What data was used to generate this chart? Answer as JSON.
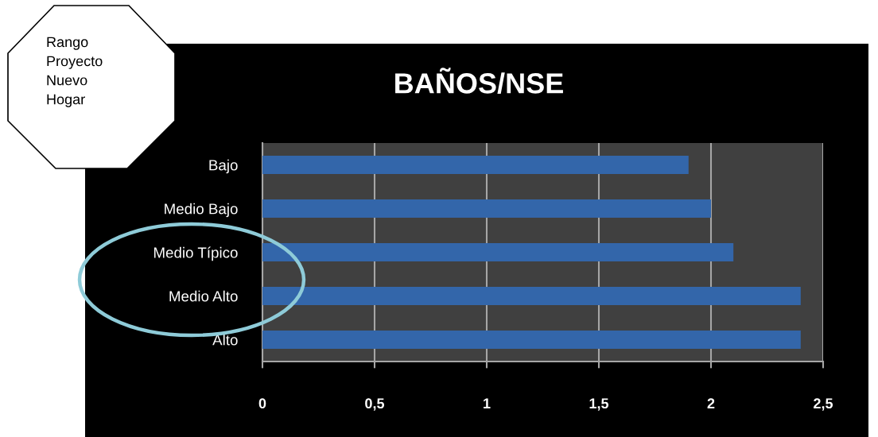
{
  "chart_data": {
    "type": "bar",
    "orientation": "horizontal",
    "title": "BAÑOS/NSE",
    "categories": [
      "Bajo",
      "Medio Bajo",
      "Medio Típico",
      "Medio Alto",
      "Alto"
    ],
    "values": [
      1.9,
      2.0,
      2.1,
      2.4,
      2.4
    ],
    "color": "#3366aa",
    "xlim": [
      0,
      2.5
    ],
    "xticks": [
      0,
      {
        "value": 0.5,
        "label": "0,5"
      },
      1,
      {
        "value": 1.5,
        "label": "1,5"
      },
      2,
      {
        "value": 2.5,
        "label": "2,5"
      }
    ],
    "grid": "x",
    "annotations": [
      "Rango\nProyecto\nNuevo\nHogar"
    ]
  }
}
